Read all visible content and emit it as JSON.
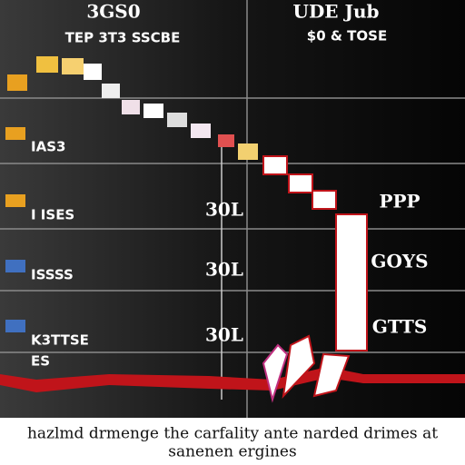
{
  "header": {
    "left_title": "3GS0",
    "left_subtitle": "TEP 3T3 SSCBE",
    "right_title": "UDE Jub",
    "right_subtitle": "$0 & TOSE"
  },
  "rows": [
    {
      "left": "IAS3",
      "middle": null,
      "right": null
    },
    {
      "left": "I ISES",
      "middle": "30L",
      "right": "PPP"
    },
    {
      "left": "ISSSS",
      "middle": "30L",
      "right": "GOYS"
    },
    {
      "left": "K3TTSE",
      "middle": "30L",
      "right": "GTTS"
    },
    {
      "left": "ES",
      "middle": null,
      "right": null
    }
  ],
  "caption": {
    "line1": "hazlmd drmenge the carfality ante narded drimes at",
    "line2": "sanenen ergines"
  }
}
